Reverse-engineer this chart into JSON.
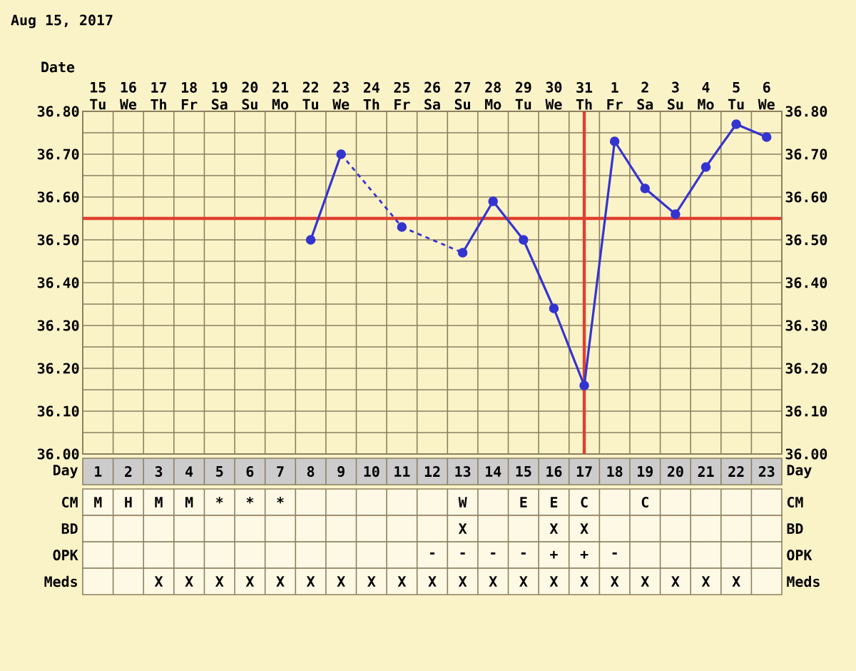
{
  "chart_data": [
    {
      "type": "line",
      "title": "Aug 15, 2017",
      "xlabel": "Date",
      "categories": [
        "15 Tu",
        "16 We",
        "17 Th",
        "18 Fr",
        "19 Sa",
        "20 Su",
        "21 Mo",
        "22 Tu",
        "23 We",
        "24 Th",
        "25 Fr",
        "26 Sa",
        "27 Su",
        "28 Mo",
        "29 Tu",
        "30 We",
        "31 Th",
        "1 Fr",
        "2 Sa",
        "3 Su",
        "4 Mo",
        "5 Tu",
        "6 We"
      ],
      "series": [
        {
          "color": "#3434d0",
          "values": [
            null,
            null,
            null,
            null,
            null,
            null,
            null,
            36.5,
            36.7,
            null,
            36.53,
            null,
            36.47,
            36.59,
            36.5,
            36.34,
            36.16,
            36.73,
            36.62,
            36.56,
            36.67,
            36.77,
            36.74
          ]
        }
      ],
      "marker": "circle",
      "grid": true,
      "ylim": [
        36.0,
        36.8
      ],
      "yticks": [
        {
          "value": 36.0,
          "label": "36.00"
        },
        {
          "value": 36.1,
          "label": "36.10"
        },
        {
          "value": 36.2,
          "label": "36.20"
        },
        {
          "value": 36.3,
          "label": "36.30"
        },
        {
          "value": 36.4,
          "label": "36.40"
        },
        {
          "value": 36.5,
          "label": "36.50"
        },
        {
          "value": 36.6,
          "label": "36.60"
        },
        {
          "value": 36.7,
          "label": "36.70"
        },
        {
          "value": 36.8,
          "label": "36.80"
        }
      ],
      "y2lim": [
        36.0,
        36.8
      ],
      "y2ticks": [
        {
          "value": 36.0,
          "label": "36.00"
        },
        {
          "value": 36.1,
          "label": "36.10"
        },
        {
          "value": 36.2,
          "label": "36.20"
        },
        {
          "value": 36.3,
          "label": "36.30"
        },
        {
          "value": 36.4,
          "label": "36.40"
        },
        {
          "value": 36.5,
          "label": "36.50"
        },
        {
          "value": 36.6,
          "label": "36.60"
        },
        {
          "value": 36.7,
          "label": "36.70"
        },
        {
          "value": 36.8,
          "label": "36.80"
        }
      ],
      "ref_lines": [
        {
          "axis": "y",
          "value": 36.55,
          "color": "#e04030"
        },
        {
          "axis": "x",
          "value": "31 Th",
          "color": "#e04030"
        }
      ]
    },
    {
      "type": "heatmap",
      "xlabel": "Day",
      "categories": [
        "1",
        "2",
        "3",
        "4",
        "5",
        "6",
        "7",
        "8",
        "9",
        "10",
        "11",
        "12",
        "13",
        "14",
        "15",
        "16",
        "17",
        "18",
        "19",
        "20",
        "21",
        "22",
        "23"
      ],
      "y_categories": [
        "CM",
        "BD",
        "OPK",
        "Meds"
      ],
      "y2_categories": [
        "CM",
        "BD",
        "OPK",
        "Meds"
      ],
      "cells": [
        [
          null,
          null,
          null,
          null,
          null,
          null,
          null,
          null,
          null,
          null,
          null,
          null,
          null,
          null,
          null,
          null,
          null,
          null,
          null,
          null,
          null,
          null,
          null
        ],
        [
          null,
          null,
          null,
          null,
          null,
          null,
          null,
          null,
          null,
          null,
          null,
          null,
          null,
          null,
          null,
          null,
          null,
          null,
          null,
          null,
          null,
          null,
          null
        ],
        [
          null,
          null,
          null,
          null,
          null,
          null,
          null,
          null,
          null,
          null,
          null,
          null,
          null,
          null,
          null,
          null,
          null,
          null,
          null,
          null,
          null,
          null,
          null
        ],
        [
          null,
          null,
          null,
          null,
          null,
          null,
          null,
          null,
          null,
          null,
          null,
          null,
          null,
          null,
          null,
          null,
          null,
          null,
          null,
          null,
          null,
          null,
          null
        ]
      ],
      "cell_labels": [
        [
          "M",
          "H",
          "M",
          "M",
          "*",
          "*",
          "*",
          null,
          null,
          null,
          null,
          null,
          "W",
          null,
          "E",
          "E",
          "C",
          null,
          "C",
          null,
          null,
          null,
          null
        ],
        [
          null,
          null,
          null,
          null,
          null,
          null,
          null,
          null,
          null,
          null,
          null,
          null,
          "X",
          null,
          null,
          "X",
          "X",
          null,
          null,
          null,
          null,
          null,
          null
        ],
        [
          null,
          null,
          null,
          null,
          null,
          null,
          null,
          null,
          null,
          null,
          null,
          "-",
          "-",
          "-",
          "-",
          "+",
          "+",
          "-",
          null,
          null,
          null,
          null,
          null
        ],
        [
          null,
          null,
          "X",
          "X",
          "X",
          "X",
          "X",
          "X",
          "X",
          "X",
          "X",
          "X",
          "X",
          "X",
          "X",
          "X",
          "X",
          "X",
          "X",
          "X",
          "X",
          "X",
          null
        ]
      ]
    }
  ]
}
